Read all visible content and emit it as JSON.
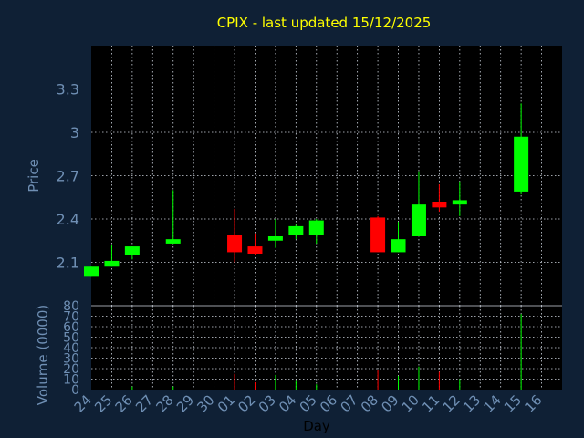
{
  "chart_data": {
    "type": "candlestick",
    "title": "CPIX - last updated 15/12/2025",
    "xlabel": "Day",
    "ylabel": "Price",
    "volume_label": "Volume (0000)",
    "categories": [
      "24",
      "25",
      "26",
      "27",
      "28",
      "29",
      "30",
      "01",
      "02",
      "03",
      "04",
      "05",
      "06",
      "07",
      "08",
      "09",
      "10",
      "11",
      "12",
      "13",
      "14",
      "15",
      "16"
    ],
    "price_ylim": [
      1.8,
      3.6
    ],
    "price_ticks": [
      2.1,
      2.4,
      2.7,
      3,
      3.3
    ],
    "price_tick_labels": [
      "2.1",
      "2.4",
      "2.7",
      "3",
      "3.3"
    ],
    "volume_ylim": [
      0,
      80
    ],
    "volume_ticks": [
      0,
      10,
      20,
      30,
      40,
      50,
      60,
      70,
      80
    ],
    "volume_tick_labels": [
      "0",
      "10",
      "20",
      "30",
      "40",
      "50",
      "60",
      "70",
      "80"
    ],
    "candles": [
      {
        "day": "24",
        "open": 2.0,
        "close": 2.07,
        "high": 2.07,
        "low": 2.0,
        "volume": 0
      },
      {
        "day": "25",
        "open": 2.07,
        "close": 2.11,
        "high": 2.22,
        "low": 2.07,
        "volume": 0
      },
      {
        "day": "26",
        "open": 2.15,
        "close": 2.21,
        "high": 2.21,
        "low": 2.12,
        "volume": 3
      },
      {
        "day": "28",
        "open": 2.23,
        "close": 2.26,
        "high": 2.6,
        "low": 2.23,
        "volume": 3
      },
      {
        "day": "01",
        "open": 2.29,
        "close": 2.17,
        "high": 2.47,
        "low": 2.1,
        "volume": 15
      },
      {
        "day": "02",
        "open": 2.21,
        "close": 2.16,
        "high": 2.3,
        "low": 2.15,
        "volume": 7
      },
      {
        "day": "03",
        "open": 2.25,
        "close": 2.28,
        "high": 2.4,
        "low": 2.2,
        "volume": 14
      },
      {
        "day": "04",
        "open": 2.29,
        "close": 2.35,
        "high": 2.36,
        "low": 2.26,
        "volume": 9
      },
      {
        "day": "05",
        "open": 2.29,
        "close": 2.39,
        "high": 2.4,
        "low": 2.23,
        "volume": 5
      },
      {
        "day": "08",
        "open": 2.41,
        "close": 2.17,
        "high": 2.42,
        "low": 2.17,
        "volume": 19
      },
      {
        "day": "09",
        "open": 2.17,
        "close": 2.26,
        "high": 2.38,
        "low": 2.17,
        "volume": 13
      },
      {
        "day": "10",
        "open": 2.28,
        "close": 2.5,
        "high": 2.73,
        "low": 2.28,
        "volume": 22
      },
      {
        "day": "11",
        "open": 2.52,
        "close": 2.48,
        "high": 2.64,
        "low": 2.45,
        "volume": 17
      },
      {
        "day": "12",
        "open": 2.5,
        "close": 2.53,
        "high": 2.66,
        "low": 2.42,
        "volume": 10
      },
      {
        "day": "15",
        "open": 2.59,
        "close": 2.97,
        "high": 3.2,
        "low": 2.57,
        "volume": 72
      }
    ],
    "up_color": "#00ff00",
    "down_color": "#ff0000",
    "background_color": "#0f2035",
    "title_color": "#ffff00",
    "axis_text_color": "#6f8fb4",
    "grid": true
  }
}
